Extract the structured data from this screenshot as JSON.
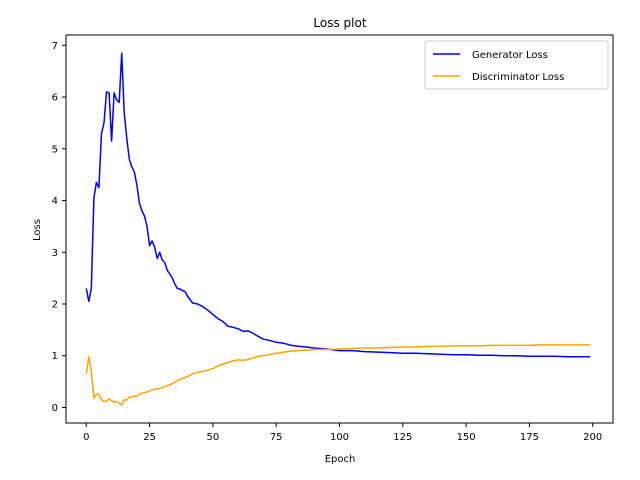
{
  "chart_data": {
    "type": "line",
    "title": "Loss plot",
    "xlabel": "Epoch",
    "ylabel": "Loss",
    "xlim": [
      -8,
      208
    ],
    "ylim": [
      -0.3,
      7.2
    ],
    "xticks": [
      0,
      25,
      50,
      75,
      100,
      125,
      150,
      175,
      200
    ],
    "yticks": [
      0,
      1,
      2,
      3,
      4,
      5,
      6,
      7
    ],
    "grid": false,
    "legend_position": "top-right",
    "series": [
      {
        "name": "Generator Loss",
        "color": "#0000ff",
        "x": [
          0,
          1,
          2,
          3,
          4,
          5,
          6,
          7,
          8,
          9,
          10,
          11,
          12,
          13,
          14,
          15,
          16,
          17,
          18,
          19,
          20,
          21,
          22,
          23,
          24,
          25,
          26,
          27,
          28,
          29,
          30,
          31,
          32,
          33,
          34,
          35,
          36,
          37,
          38,
          39,
          40,
          42,
          44,
          46,
          48,
          50,
          52,
          54,
          56,
          58,
          60,
          62,
          64,
          66,
          68,
          70,
          72,
          75,
          78,
          81,
          84,
          87,
          90,
          95,
          100,
          105,
          110,
          115,
          120,
          125,
          130,
          135,
          140,
          145,
          150,
          155,
          160,
          165,
          170,
          175,
          180,
          185,
          190,
          195,
          199
        ],
        "y": [
          2.3,
          2.05,
          2.3,
          4.05,
          4.35,
          4.25,
          5.3,
          5.5,
          6.1,
          6.08,
          5.15,
          6.08,
          5.95,
          5.9,
          6.85,
          5.7,
          5.2,
          4.8,
          4.65,
          4.55,
          4.3,
          3.95,
          3.8,
          3.7,
          3.5,
          3.13,
          3.22,
          3.1,
          2.88,
          3.0,
          2.85,
          2.8,
          2.65,
          2.58,
          2.5,
          2.38,
          2.3,
          2.29,
          2.26,
          2.24,
          2.15,
          2.02,
          2.0,
          1.95,
          1.88,
          1.8,
          1.72,
          1.66,
          1.57,
          1.55,
          1.52,
          1.47,
          1.48,
          1.43,
          1.37,
          1.32,
          1.3,
          1.26,
          1.24,
          1.2,
          1.18,
          1.17,
          1.15,
          1.13,
          1.1,
          1.1,
          1.08,
          1.07,
          1.06,
          1.05,
          1.05,
          1.04,
          1.03,
          1.02,
          1.02,
          1.01,
          1.01,
          1.0,
          1.0,
          0.99,
          0.99,
          0.99,
          0.98,
          0.98,
          0.98
        ]
      },
      {
        "name": "Discriminator Loss",
        "color": "#ffa500",
        "x": [
          0,
          1,
          2,
          3,
          4,
          5,
          6,
          7,
          8,
          9,
          10,
          11,
          12,
          13,
          14,
          15,
          16,
          17,
          18,
          19,
          20,
          22,
          24,
          26,
          28,
          30,
          32,
          34,
          36,
          38,
          40,
          42,
          44,
          46,
          48,
          50,
          52,
          54,
          56,
          58,
          60,
          62,
          64,
          66,
          68,
          70,
          72,
          75,
          78,
          81,
          84,
          87,
          90,
          95,
          100,
          105,
          110,
          115,
          120,
          125,
          130,
          135,
          140,
          145,
          150,
          155,
          160,
          165,
          170,
          175,
          180,
          185,
          190,
          195,
          199
        ],
        "y": [
          0.65,
          0.98,
          0.7,
          0.18,
          0.26,
          0.25,
          0.15,
          0.12,
          0.12,
          0.17,
          0.13,
          0.1,
          0.12,
          0.08,
          0.05,
          0.15,
          0.14,
          0.2,
          0.2,
          0.22,
          0.22,
          0.28,
          0.3,
          0.34,
          0.36,
          0.38,
          0.42,
          0.46,
          0.52,
          0.56,
          0.6,
          0.65,
          0.68,
          0.7,
          0.72,
          0.75,
          0.8,
          0.84,
          0.87,
          0.9,
          0.92,
          0.91,
          0.93,
          0.96,
          0.99,
          1.0,
          1.02,
          1.05,
          1.07,
          1.09,
          1.1,
          1.11,
          1.12,
          1.12,
          1.13,
          1.14,
          1.15,
          1.15,
          1.16,
          1.17,
          1.17,
          1.18,
          1.18,
          1.19,
          1.19,
          1.19,
          1.2,
          1.2,
          1.2,
          1.2,
          1.21,
          1.21,
          1.21,
          1.21,
          1.21
        ]
      }
    ]
  }
}
